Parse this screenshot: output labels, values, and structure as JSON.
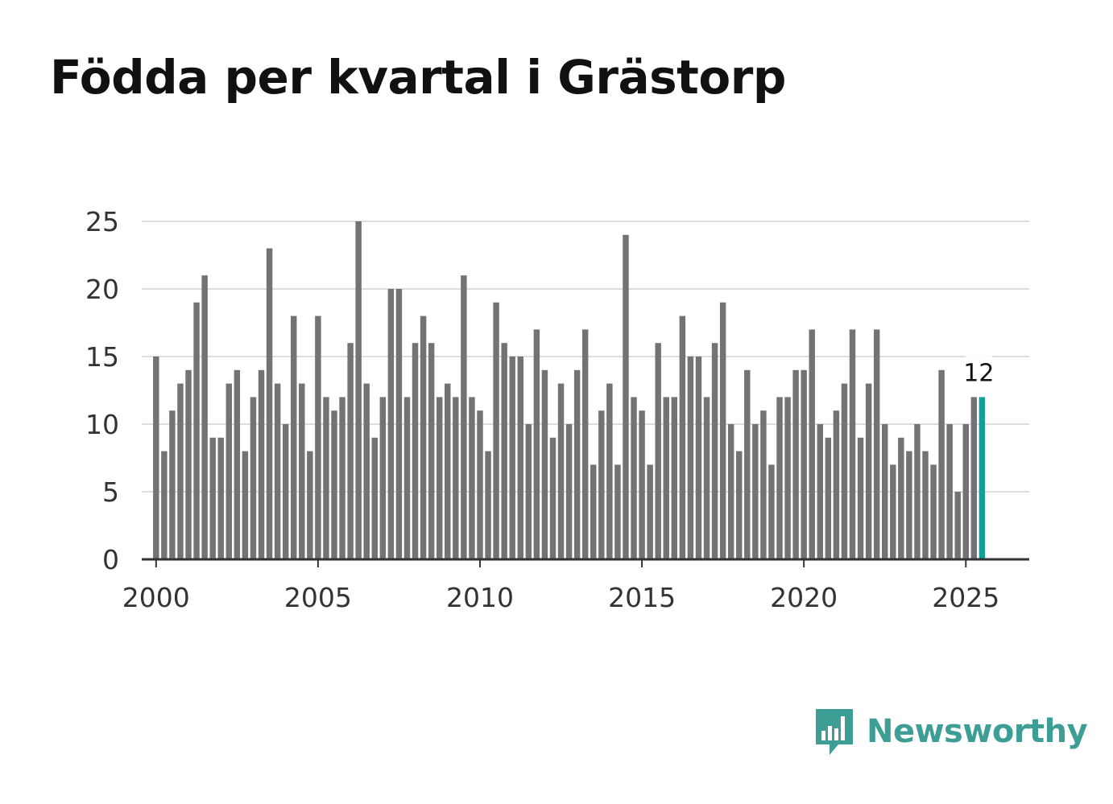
{
  "title": "Födda per kvartal i Grästorp",
  "brand": {
    "name": "Newsworthy",
    "icon": "bar-chart-speech-bubble-icon",
    "color": "#3d9e96"
  },
  "chart_data": {
    "type": "bar",
    "title": "Födda per kvartal i Grästorp",
    "xlabel": "",
    "ylabel": "",
    "x_start": 2000,
    "x_step": 0.25,
    "xlim": [
      1999.65,
      2027.05
    ],
    "ylim": [
      0,
      25
    ],
    "yticks": [
      0,
      5,
      10,
      15,
      20,
      25
    ],
    "xticks": [
      2000,
      2005,
      2010,
      2015,
      2020,
      2025
    ],
    "grid": true,
    "bar_color": "#737275",
    "highlight_color": "#139e96",
    "values": [
      15,
      8,
      11,
      13,
      14,
      19,
      21,
      9,
      9,
      13,
      14,
      8,
      12,
      14,
      23,
      13,
      10,
      18,
      13,
      8,
      18,
      12,
      11,
      12,
      16,
      25,
      13,
      9,
      12,
      20,
      20,
      12,
      16,
      18,
      16,
      12,
      13,
      12,
      21,
      12,
      11,
      8,
      19,
      16,
      15,
      15,
      10,
      17,
      14,
      9,
      13,
      10,
      14,
      17,
      7,
      11,
      13,
      7,
      24,
      12,
      11,
      7,
      16,
      12,
      12,
      18,
      15,
      15,
      12,
      16,
      19,
      10,
      8,
      14,
      10,
      11,
      7,
      12,
      12,
      14,
      14,
      17,
      10,
      9,
      11,
      13,
      17,
      9,
      13,
      17,
      10,
      7,
      9,
      8,
      10,
      8,
      7,
      14,
      10,
      5,
      10,
      12,
      12
    ],
    "annotation": {
      "text": "12",
      "index": 102
    }
  }
}
